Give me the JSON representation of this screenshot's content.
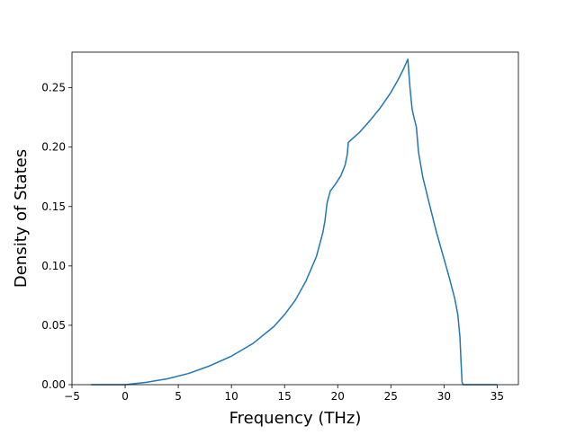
{
  "chart_data": {
    "type": "line",
    "xlabel": "Frequency (THz)",
    "ylabel": "Density of States",
    "xlim": [
      -5,
      37
    ],
    "ylim": [
      0,
      0.28
    ],
    "grid": false,
    "line_color": "#1f77b4",
    "xticks": [
      {
        "value": -5,
        "label": "−5"
      },
      {
        "value": 0,
        "label": "0"
      },
      {
        "value": 5,
        "label": "5"
      },
      {
        "value": 10,
        "label": "10"
      },
      {
        "value": 15,
        "label": "15"
      },
      {
        "value": 20,
        "label": "20"
      },
      {
        "value": 25,
        "label": "25"
      },
      {
        "value": 30,
        "label": "30"
      },
      {
        "value": 35,
        "label": "35"
      }
    ],
    "yticks": [
      {
        "value": 0,
        "label": "0.00"
      },
      {
        "value": 0.05,
        "label": "0.05"
      },
      {
        "value": 0.1,
        "label": "0.10"
      },
      {
        "value": 0.15,
        "label": "0.15"
      },
      {
        "value": 0.2,
        "label": "0.20"
      },
      {
        "value": 0.25,
        "label": "0.25"
      }
    ],
    "series": [
      {
        "x": [
          -3.2,
          0,
          2,
          4,
          6,
          8,
          10,
          12,
          14,
          15,
          16,
          17,
          18,
          18.6,
          18.8,
          19.0,
          19.3,
          19.8,
          20.3,
          20.7,
          20.9,
          21.0,
          22,
          23,
          24,
          25,
          25.7,
          26.2,
          26.4,
          26.5,
          26.6,
          26.8,
          27.0,
          27.2,
          27.4,
          27.6,
          28,
          28.6,
          29.3,
          30,
          30.5,
          31.0,
          31.3,
          31.5,
          31.6,
          31.7,
          31.8,
          32.2,
          35
        ],
        "y": [
          0,
          0,
          0.002,
          0.005,
          0.0095,
          0.016,
          0.024,
          0.0345,
          0.049,
          0.059,
          0.071,
          0.087,
          0.108,
          0.128,
          0.138,
          0.153,
          0.163,
          0.169,
          0.176,
          0.185,
          0.194,
          0.204,
          0.212,
          0.222,
          0.233,
          0.246,
          0.257,
          0.266,
          0.27,
          0.272,
          0.274,
          0.25,
          0.232,
          0.224,
          0.217,
          0.196,
          0.175,
          0.153,
          0.128,
          0.106,
          0.09,
          0.073,
          0.059,
          0.04,
          0.02,
          0.002,
          0,
          0,
          0
        ]
      }
    ]
  }
}
